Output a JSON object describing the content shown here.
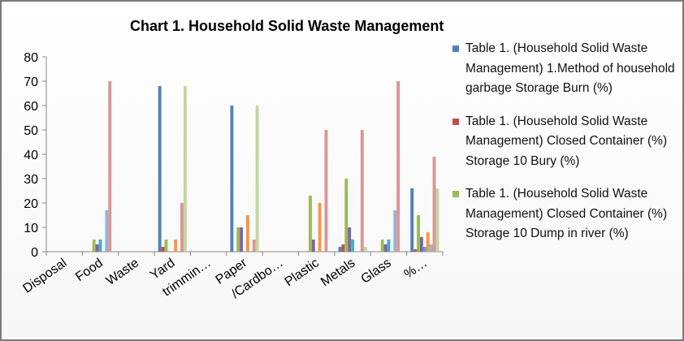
{
  "chart_data": {
    "type": "bar",
    "title": "Chart 1. Household Solid Waste Management",
    "xlabel": "",
    "ylabel": "",
    "ylim": [
      0,
      80
    ],
    "yticks": [
      0,
      10,
      20,
      30,
      40,
      50,
      60,
      70,
      80
    ],
    "grid": false,
    "legend_position": "right",
    "categories": [
      "Disposal",
      "Food",
      "Waste",
      "Yard",
      "trimmin…",
      "Paper",
      "/Cardbo…",
      "Plastic",
      "Metals",
      "Glass",
      "%…"
    ],
    "series": [
      {
        "name": "Table 1. (Household Solid Waste Management) 1.Method of household garbage Storage Burn (%)",
        "color": "#4f81bd",
        "values": [
          0,
          0,
          0,
          68,
          0,
          60,
          0,
          0,
          2,
          0,
          26
        ]
      },
      {
        "name": "Table 1. (Household Solid Waste Management) Closed Container (%) Storage 10 Bury (%)",
        "color": "#c0504d",
        "values": [
          0,
          0,
          0,
          2,
          0,
          0,
          0,
          0,
          3,
          0,
          1
        ]
      },
      {
        "name": "Table 1. (Household Solid Waste Management) Closed Container (%) Storage 10 Dump in river (%)",
        "color": "#9bbb59",
        "values": [
          0,
          5,
          0,
          5,
          0,
          10,
          0,
          23,
          30,
          5,
          15
        ]
      },
      {
        "color": "#8064a2",
        "values": [
          0,
          3,
          0,
          0,
          0,
          10,
          0,
          5,
          10,
          3,
          6
        ]
      },
      {
        "color": "#4bacc6",
        "values": [
          0,
          5,
          0,
          0,
          0,
          0,
          0,
          0,
          5,
          5,
          2
        ]
      },
      {
        "color": "#f79646",
        "values": [
          0,
          0,
          0,
          5,
          0,
          15,
          0,
          20,
          0,
          0,
          8
        ]
      },
      {
        "color": "#95b3d7",
        "values": [
          0,
          17,
          0,
          0,
          0,
          0,
          0,
          0,
          0,
          17,
          3
        ]
      },
      {
        "color": "#d99694",
        "values": [
          0,
          70,
          0,
          20,
          0,
          5,
          0,
          50,
          50,
          70,
          39
        ]
      },
      {
        "color": "#c3d69b",
        "values": [
          0,
          0,
          0,
          68,
          0,
          60,
          0,
          0,
          2,
          0,
          26
        ]
      }
    ]
  }
}
